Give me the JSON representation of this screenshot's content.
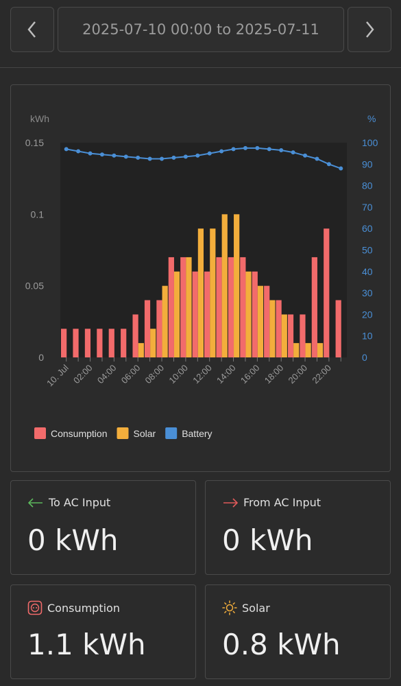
{
  "header": {
    "date_range": "2025-07-10 00:00 to 2025-07-11",
    "prev_icon": "chevron-left-icon",
    "next_icon": "chevron-right-icon"
  },
  "chart_data": {
    "type": "bar",
    "title": "",
    "ylabel_left": "kWh",
    "ylabel_right": "%",
    "left_ticks": [
      "0.15",
      "0.1",
      "0.05",
      "0"
    ],
    "right_ticks": [
      "100",
      "90",
      "80",
      "70",
      "60",
      "50",
      "40",
      "30",
      "20",
      "10",
      "0"
    ],
    "ylim_left": [
      0,
      0.15
    ],
    "ylim_right": [
      0,
      100
    ],
    "x_tick_labels": [
      "10. Jul",
      "02:00",
      "04:00",
      "06:00",
      "08:00",
      "10:00",
      "12:00",
      "14:00",
      "16:00",
      "18:00",
      "20:00",
      "22:00"
    ],
    "hours": [
      0,
      1,
      2,
      3,
      4,
      5,
      6,
      7,
      8,
      9,
      10,
      11,
      12,
      13,
      14,
      15,
      16,
      17,
      18,
      19,
      20,
      21,
      22,
      23
    ],
    "grid": false,
    "legend_position": "bottom-left",
    "series": [
      {
        "name": "Consumption",
        "color": "#f26b6b",
        "values": [
          0.02,
          0.02,
          0.02,
          0.02,
          0.02,
          0.02,
          0.03,
          0.04,
          0.04,
          0.07,
          0.07,
          0.06,
          0.06,
          0.07,
          0.07,
          0.07,
          0.06,
          0.05,
          0.04,
          0.03,
          0.03,
          0.07,
          0.09,
          0.04
        ]
      },
      {
        "name": "Solar",
        "color": "#f3ae3c",
        "values": [
          0,
          0,
          0,
          0,
          0,
          0,
          0.01,
          0.02,
          0.05,
          0.06,
          0.07,
          0.09,
          0.09,
          0.1,
          0.1,
          0.06,
          0.05,
          0.04,
          0.03,
          0.01,
          0.01,
          0.01,
          0,
          0
        ]
      },
      {
        "name": "Battery",
        "color": "#4a8fd6",
        "values": [
          97,
          96,
          95,
          94.5,
          94,
          93.5,
          93,
          92.5,
          92.5,
          93,
          93.5,
          94,
          95,
          96,
          97,
          97.5,
          97.5,
          97,
          96.5,
          95.5,
          94,
          92.5,
          90,
          88
        ]
      }
    ]
  },
  "tiles": [
    {
      "label": "To AC Input",
      "value": "0 kWh",
      "icon": "arrow-left-icon",
      "icon_color": "#5cb85c"
    },
    {
      "label": "From AC Input",
      "value": "0 kWh",
      "icon": "arrow-right-icon",
      "icon_color": "#e05a5a"
    },
    {
      "label": "Consumption",
      "value": "1.1 kWh",
      "icon": "socket-icon",
      "icon_color": "#f26b6b"
    },
    {
      "label": "Solar",
      "value": "0.8 kWh",
      "icon": "sun-icon",
      "icon_color": "#f3ae3c"
    }
  ]
}
